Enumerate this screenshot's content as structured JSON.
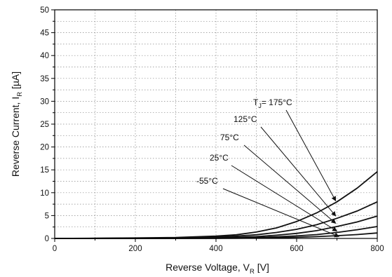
{
  "chart_data": {
    "type": "line",
    "title": "",
    "xlabel": {
      "main": "Reverse Voltage, V",
      "sub": "R",
      "unit": " [V]"
    },
    "ylabel": {
      "main": "Reverse Current, I",
      "sub": "R",
      "unit": " [µA]"
    },
    "xlim": [
      0,
      800
    ],
    "ylim": [
      0,
      50
    ],
    "x_ticks": [
      0,
      200,
      400,
      600,
      800
    ],
    "y_ticks": [
      0,
      5,
      10,
      15,
      20,
      25,
      30,
      35,
      40,
      45,
      50
    ],
    "grid": true,
    "x": [
      0,
      100,
      200,
      300,
      400,
      450,
      500,
      550,
      600,
      650,
      700,
      750,
      800
    ],
    "series": [
      {
        "name": "T_J = 175°C",
        "values": [
          0,
          0.05,
          0.1,
          0.2,
          0.5,
          0.8,
          1.4,
          2.3,
          3.7,
          5.6,
          8.0,
          11.0,
          14.6
        ]
      },
      {
        "name": "125°C",
        "values": [
          0,
          0.02,
          0.05,
          0.1,
          0.3,
          0.5,
          0.8,
          1.3,
          2.0,
          3.0,
          4.4,
          6.0,
          8.0
        ]
      },
      {
        "name": "75°C",
        "values": [
          0,
          0,
          0.02,
          0.05,
          0.15,
          0.25,
          0.4,
          0.7,
          1.1,
          1.7,
          2.6,
          3.6,
          4.9
        ]
      },
      {
        "name": "25°C",
        "values": [
          0,
          0,
          0,
          0.02,
          0.05,
          0.1,
          0.2,
          0.35,
          0.55,
          0.85,
          1.3,
          1.9,
          2.6
        ]
      },
      {
        "name": "-55°C",
        "values": [
          0,
          0,
          0,
          0,
          0.02,
          0.05,
          0.08,
          0.15,
          0.25,
          0.4,
          0.6,
          0.85,
          1.2
        ]
      }
    ],
    "annotations": [
      {
        "label_main": "T",
        "label_sub": "J",
        "label_rest": "= 175°C",
        "series": 0
      },
      {
        "label_main": "125°C",
        "series": 1
      },
      {
        "label_main": "75°C",
        "series": 2
      },
      {
        "label_main": "25°C",
        "series": 3
      },
      {
        "label_main": "-55°C",
        "series": 4
      }
    ]
  }
}
